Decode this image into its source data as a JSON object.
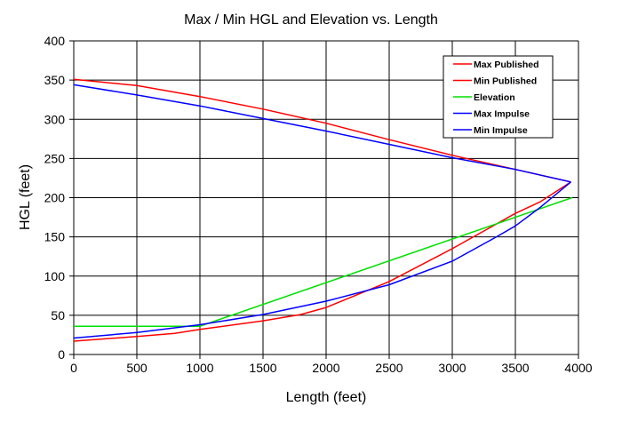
{
  "chart_data": {
    "type": "line",
    "title": "Max / Min HGL and Elevation vs. Length",
    "xlabel": "Length (feet)",
    "ylabel": "HGL (feet)",
    "xlim": [
      0,
      4000
    ],
    "ylim": [
      0,
      400
    ],
    "xticks": [
      0,
      500,
      1000,
      1500,
      2000,
      2500,
      3000,
      3500,
      4000
    ],
    "yticks": [
      0,
      50,
      100,
      150,
      200,
      250,
      300,
      350,
      400
    ],
    "grid": true,
    "legend_position": "top-right",
    "series": [
      {
        "name": "Max Published",
        "color": "#ff0000",
        "x": [
          0,
          500,
          1000,
          1500,
          2000,
          2500,
          3000,
          3500,
          3940
        ],
        "y": [
          351,
          343,
          329,
          313,
          295,
          274,
          254,
          236,
          220
        ]
      },
      {
        "name": "Min Published",
        "color": "#ff0000",
        "x": [
          0,
          500,
          800,
          1000,
          1500,
          1800,
          2000,
          2500,
          3000,
          3500,
          3700,
          3940
        ],
        "y": [
          17,
          23,
          27,
          32,
          43,
          51,
          60,
          93,
          135,
          180,
          195,
          220
        ]
      },
      {
        "name": "Elevation",
        "color": "#00e000",
        "x": [
          0,
          1000,
          3950
        ],
        "y": [
          36,
          36,
          200
        ]
      },
      {
        "name": "Max Impulse",
        "color": "#0000ff",
        "x": [
          0,
          500,
          1000,
          1500,
          2000,
          2500,
          3000,
          3500,
          3940
        ],
        "y": [
          344,
          331,
          317,
          301,
          285,
          268,
          251,
          236,
          220
        ]
      },
      {
        "name": "Min Impulse",
        "color": "#0000ff",
        "x": [
          0,
          500,
          1000,
          1500,
          2000,
          2500,
          3000,
          3350,
          3500,
          3700,
          3940
        ],
        "y": [
          21,
          28,
          38,
          51,
          68,
          89,
          119,
          150,
          164,
          188,
          220
        ]
      }
    ]
  }
}
